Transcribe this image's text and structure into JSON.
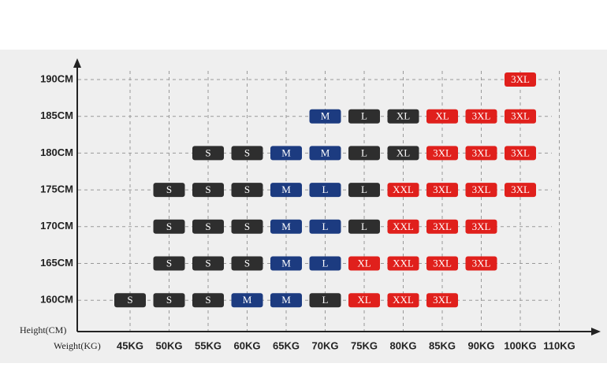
{
  "axis": {
    "y_title": "Height(CM)",
    "x_title": "Weight(KG)"
  },
  "x_labels": [
    "45KG",
    "50KG",
    "55KG",
    "60KG",
    "65KG",
    "70KG",
    "75KG",
    "80KG",
    "85KG",
    "90KG",
    "100KG",
    "110KG"
  ],
  "y_labels": [
    "190CM",
    "185CM",
    "180CM",
    "175CM",
    "170CM",
    "165CM",
    "160CM"
  ],
  "rows": [
    [
      null,
      null,
      null,
      null,
      null,
      null,
      null,
      null,
      null,
      null,
      {
        "size": "3XL",
        "color": "#e0201c"
      },
      null
    ],
    [
      null,
      null,
      null,
      null,
      null,
      {
        "size": "M",
        "color": "#1c3b80"
      },
      {
        "size": "L",
        "color": "#2e2e2e"
      },
      {
        "size": "XL",
        "color": "#2e2e2e"
      },
      {
        "size": "XL",
        "color": "#e0201c"
      },
      {
        "size": "3XL",
        "color": "#e0201c"
      },
      {
        "size": "3XL",
        "color": "#e0201c"
      },
      null
    ],
    [
      null,
      null,
      {
        "size": "S",
        "color": "#2e2e2e"
      },
      {
        "size": "S",
        "color": "#2e2e2e"
      },
      {
        "size": "M",
        "color": "#1c3b80"
      },
      {
        "size": "M",
        "color": "#1c3b80"
      },
      {
        "size": "L",
        "color": "#2e2e2e"
      },
      {
        "size": "XL",
        "color": "#2e2e2e"
      },
      {
        "size": "3XL",
        "color": "#e0201c"
      },
      {
        "size": "3XL",
        "color": "#e0201c"
      },
      {
        "size": "3XL",
        "color": "#e0201c"
      },
      null
    ],
    [
      null,
      {
        "size": "S",
        "color": "#2e2e2e"
      },
      {
        "size": "S",
        "color": "#2e2e2e"
      },
      {
        "size": "S",
        "color": "#2e2e2e"
      },
      {
        "size": "M",
        "color": "#1c3b80"
      },
      {
        "size": "L",
        "color": "#1c3b80"
      },
      {
        "size": "L",
        "color": "#2e2e2e"
      },
      {
        "size": "XXL",
        "color": "#e0201c"
      },
      {
        "size": "3XL",
        "color": "#e0201c"
      },
      {
        "size": "3XL",
        "color": "#e0201c"
      },
      {
        "size": "3XL",
        "color": "#e0201c"
      },
      null
    ],
    [
      null,
      {
        "size": "S",
        "color": "#2e2e2e"
      },
      {
        "size": "S",
        "color": "#2e2e2e"
      },
      {
        "size": "S",
        "color": "#2e2e2e"
      },
      {
        "size": "M",
        "color": "#1c3b80"
      },
      {
        "size": "L",
        "color": "#1c3b80"
      },
      {
        "size": "L",
        "color": "#2e2e2e"
      },
      {
        "size": "XXL",
        "color": "#e0201c"
      },
      {
        "size": "3XL",
        "color": "#e0201c"
      },
      {
        "size": "3XL",
        "color": "#e0201c"
      },
      null,
      null
    ],
    [
      null,
      {
        "size": "S",
        "color": "#2e2e2e"
      },
      {
        "size": "S",
        "color": "#2e2e2e"
      },
      {
        "size": "S",
        "color": "#2e2e2e"
      },
      {
        "size": "M",
        "color": "#1c3b80"
      },
      {
        "size": "L",
        "color": "#1c3b80"
      },
      {
        "size": "XL",
        "color": "#e0201c"
      },
      {
        "size": "XXL",
        "color": "#e0201c"
      },
      {
        "size": "3XL",
        "color": "#e0201c"
      },
      {
        "size": "3XL",
        "color": "#e0201c"
      },
      null,
      null
    ],
    [
      {
        "size": "S",
        "color": "#2e2e2e"
      },
      {
        "size": "S",
        "color": "#2e2e2e"
      },
      {
        "size": "S",
        "color": "#2e2e2e"
      },
      {
        "size": "M",
        "color": "#1c3b80"
      },
      {
        "size": "M",
        "color": "#1c3b80"
      },
      {
        "size": "L",
        "color": "#2e2e2e"
      },
      {
        "size": "XL",
        "color": "#e0201c"
      },
      {
        "size": "XXL",
        "color": "#e0201c"
      },
      {
        "size": "3XL",
        "color": "#e0201c"
      },
      null,
      null,
      null
    ]
  ]
}
